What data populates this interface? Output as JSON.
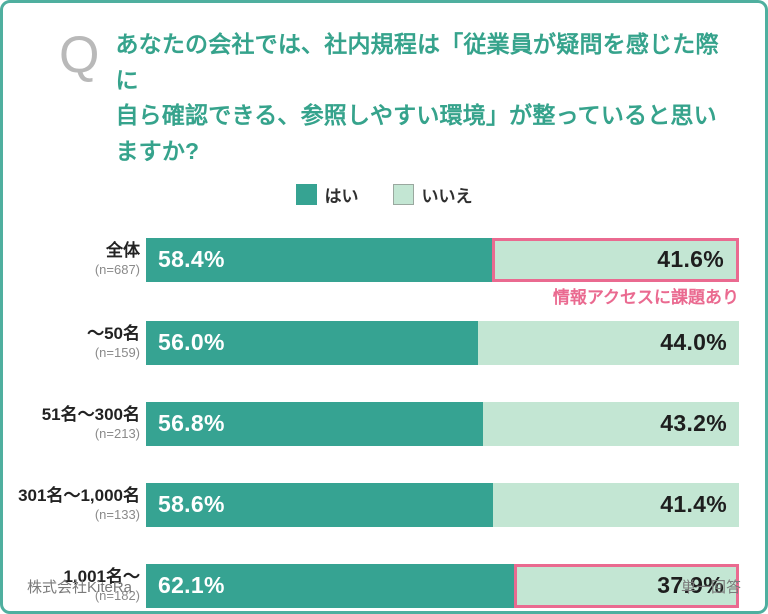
{
  "question": {
    "prefix": "Q",
    "line1": "あなたの会社では、社内規程は「従業員が疑問を感じた際に",
    "line2": "自ら確認できる、参照しやすい環境」が整っていると思いますか?"
  },
  "annotation": "情報アクセスに課題あり",
  "footer": {
    "left": "株式会社KiteRa",
    "right": "単一回答"
  },
  "colors": {
    "card_border": "#4FAF9F",
    "title_text": "#36A38C",
    "yes_bar": "#36A392",
    "no_bar": "#C3E6D3",
    "highlight_pink": "#EA6A90",
    "q_gray": "#B9B9B9",
    "footer_gray": "#7A7A7A"
  },
  "chart_data": {
    "type": "bar",
    "orientation": "horizontal",
    "stacked": true,
    "grid": false,
    "legend_position": "top-center",
    "categories": [
      "全体",
      "〜50名",
      "51名〜300名",
      "301名〜1,000名",
      "1,001名〜"
    ],
    "sample_sizes": [
      "(n=687)",
      "(n=159)",
      "(n=213)",
      "(n=133)",
      "(n=182)"
    ],
    "series": [
      {
        "name": "はい",
        "color": "#36A392",
        "values": [
          58.4,
          56.0,
          56.8,
          58.6,
          62.1
        ]
      },
      {
        "name": "いいえ",
        "color": "#C3E6D3",
        "values": [
          41.6,
          44.0,
          43.2,
          41.4,
          37.9
        ]
      }
    ],
    "value_suffix": "%",
    "xlim": [
      0,
      100
    ],
    "highlighted_rows": [
      0,
      4
    ],
    "highlight_label": "情報アクセスに課題あり"
  }
}
